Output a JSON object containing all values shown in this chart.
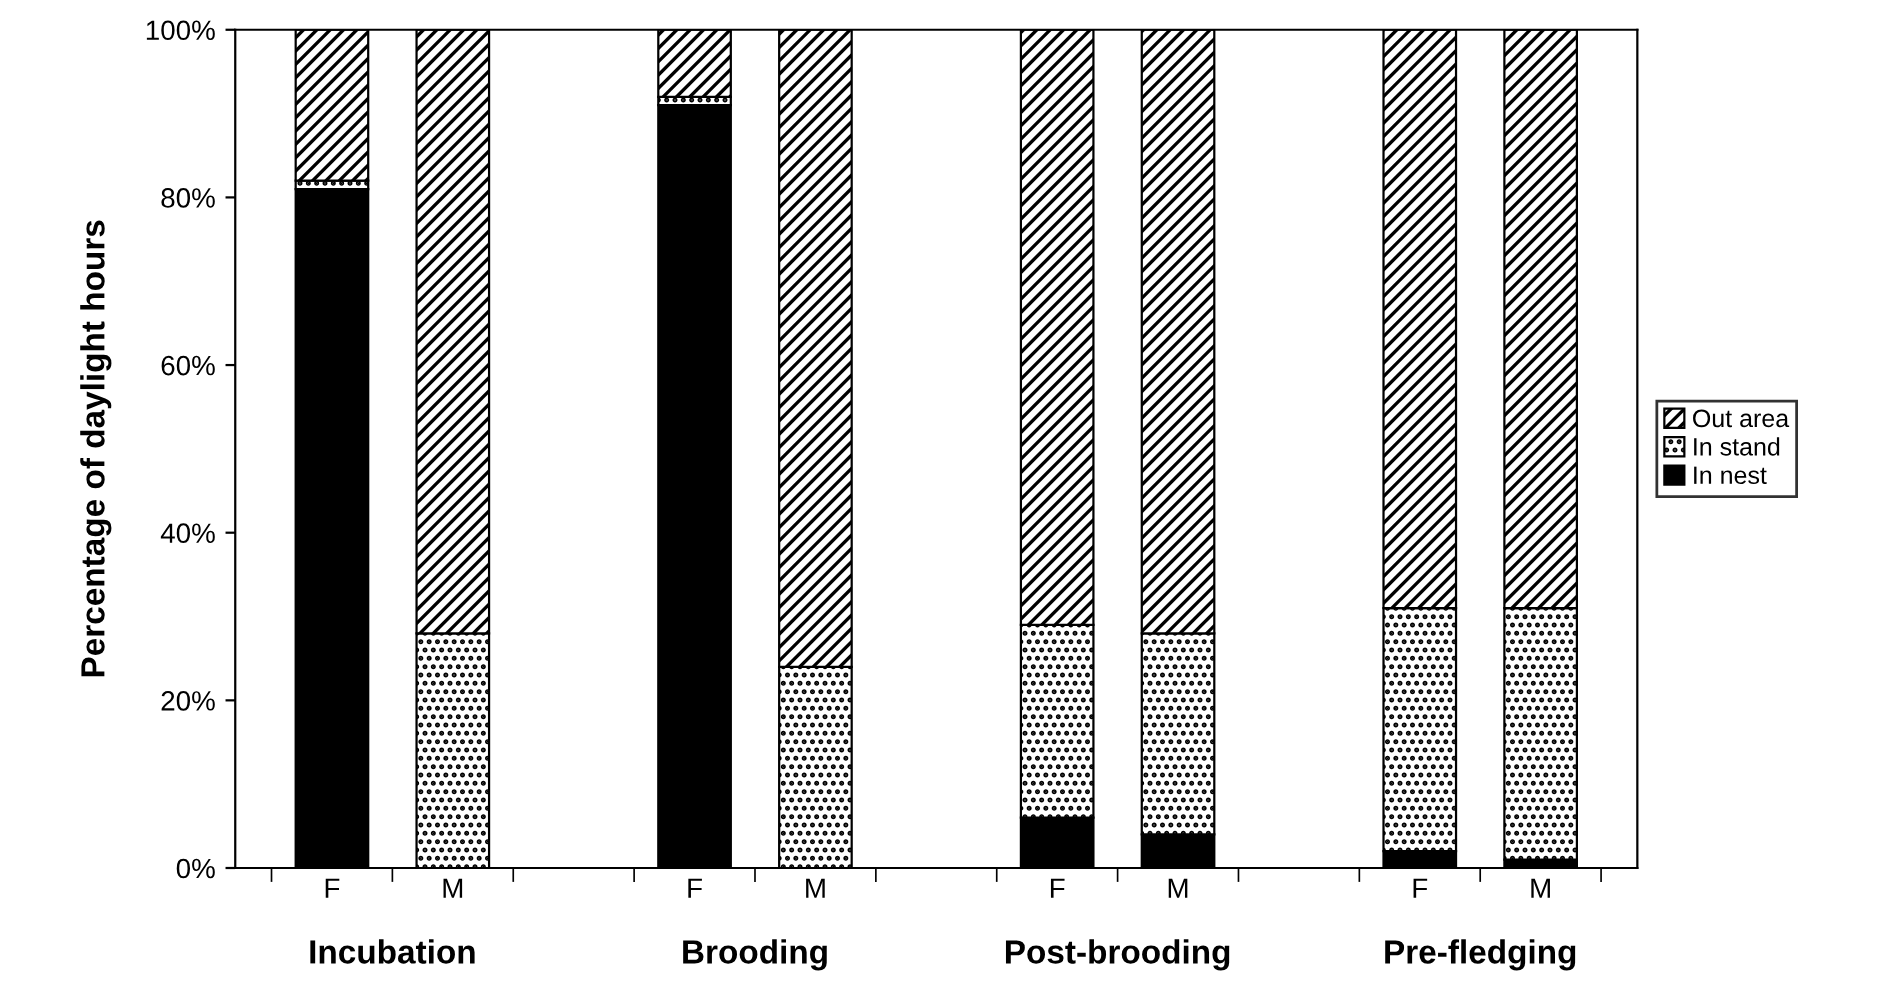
{
  "chart_data": {
    "type": "bar",
    "stacked": true,
    "ylabel": "Percentage of daylight hours",
    "categories": [
      "F",
      "M",
      null,
      "F",
      "M",
      null,
      "F",
      "M",
      null,
      "F",
      "M"
    ],
    "series": [
      {
        "name": "In nest",
        "color": "#000000",
        "values": [
          81,
          0,
          null,
          91,
          0,
          null,
          6,
          4,
          null,
          2,
          1
        ]
      },
      {
        "name": "In stand",
        "color": "#000000",
        "values": [
          1,
          28,
          null,
          1,
          24,
          null,
          23,
          24,
          null,
          29,
          30
        ]
      },
      {
        "name": "Out area",
        "color": "#000000",
        "values": [
          18,
          72,
          null,
          8,
          76,
          null,
          71,
          72,
          null,
          69,
          69
        ]
      }
    ],
    "ylim": [
      0,
      100
    ],
    "yticks": [
      {
        "value": 0,
        "label": "0%"
      },
      {
        "value": 20,
        "label": "20%"
      },
      {
        "value": 40,
        "label": "40%"
      },
      {
        "value": 60,
        "label": "60%"
      },
      {
        "value": 80,
        "label": "80%"
      },
      {
        "value": 100,
        "label": "100%"
      }
    ],
    "annotations": [
      "Incubation",
      "Brooding",
      "Post-brooding",
      "Pre-fledging"
    ],
    "legend": "right",
    "grid": false
  }
}
